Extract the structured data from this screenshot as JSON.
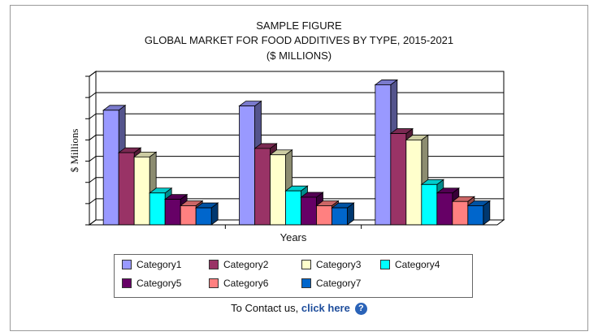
{
  "chart_data": {
    "type": "bar",
    "title": "SAMPLE FIGURE",
    "subtitle": "GLOBAL MARKET FOR FOOD ADDITIVES BY TYPE, 2015-2021",
    "unit_label": "($ MILLIONS)",
    "xlabel": "Years",
    "ylabel": "$ Millions",
    "categories": [
      "",
      "",
      ""
    ],
    "ylim": [
      0,
      7
    ],
    "grid": true,
    "legend_position": "bottom",
    "series": [
      {
        "name": "Category1",
        "color": "#9999ff",
        "values": [
          5.4,
          5.6,
          6.6
        ]
      },
      {
        "name": "Category2",
        "color": "#993366",
        "values": [
          3.4,
          3.6,
          4.3
        ]
      },
      {
        "name": "Category3",
        "color": "#ffffcc",
        "values": [
          3.2,
          3.3,
          4.0
        ]
      },
      {
        "name": "Category4",
        "color": "#00ffff",
        "values": [
          1.5,
          1.6,
          1.9
        ]
      },
      {
        "name": "Category5",
        "color": "#660066",
        "values": [
          1.2,
          1.3,
          1.5
        ]
      },
      {
        "name": "Category6",
        "color": "#ff8080",
        "values": [
          0.9,
          0.9,
          1.1
        ]
      },
      {
        "name": "Category7",
        "color": "#0066cc",
        "values": [
          0.8,
          0.8,
          0.9
        ]
      }
    ]
  },
  "contact": {
    "prefix": "To Contact us, ",
    "link": "click here",
    "icon": "help-icon"
  }
}
